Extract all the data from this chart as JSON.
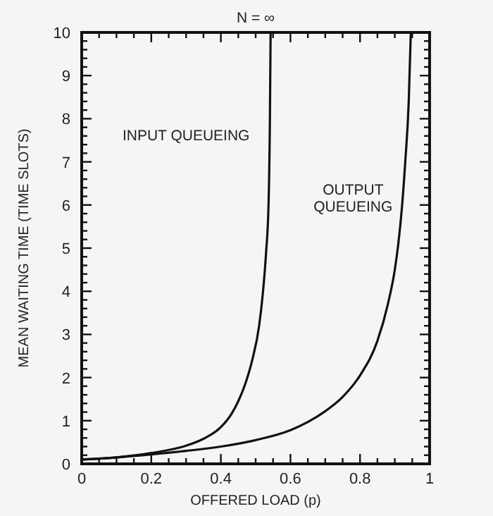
{
  "chart_data": {
    "type": "line",
    "title": "N = ∞",
    "annotations": [
      "INPUT QUEUEING",
      "OUTPUT QUEUEING"
    ],
    "xlabel": "OFFERED LOAD (p)",
    "ylabel": "MEAN WAITING TIME (TIME SLOTS)",
    "grid": false,
    "marker": "none",
    "line_style": "solid",
    "xlim": [
      0,
      1
    ],
    "ylim": [
      0,
      10
    ],
    "xticks": [
      0,
      {
        "value": 0.05,
        "label": null
      },
      {
        "value": 0.1,
        "label": null
      },
      {
        "value": 0.15,
        "label": null
      },
      0.2,
      {
        "value": 0.25,
        "label": null
      },
      {
        "value": 0.3,
        "label": null
      },
      {
        "value": 0.35,
        "label": null
      },
      0.4,
      {
        "value": 0.45,
        "label": null
      },
      {
        "value": 0.5,
        "label": null
      },
      {
        "value": 0.55,
        "label": null
      },
      0.6,
      {
        "value": 0.65,
        "label": null
      },
      {
        "value": 0.7,
        "label": null
      },
      {
        "value": 0.75,
        "label": null
      },
      0.8,
      {
        "value": 0.85,
        "label": null
      },
      {
        "value": 0.9,
        "label": null
      },
      {
        "value": 0.95,
        "label": null
      },
      1
    ],
    "yticks": [
      0,
      {
        "value": 0.2,
        "label": null
      },
      {
        "value": 0.4,
        "label": null
      },
      {
        "value": 0.6,
        "label": null
      },
      {
        "value": 0.8,
        "label": null
      },
      1,
      {
        "value": 1.2,
        "label": null
      },
      {
        "value": 1.4,
        "label": null
      },
      {
        "value": 1.6,
        "label": null
      },
      {
        "value": 1.8,
        "label": null
      },
      2,
      {
        "value": 2.2,
        "label": null
      },
      {
        "value": 2.4,
        "label": null
      },
      {
        "value": 2.6,
        "label": null
      },
      {
        "value": 2.8,
        "label": null
      },
      3,
      {
        "value": 3.2,
        "label": null
      },
      {
        "value": 3.4,
        "label": null
      },
      {
        "value": 3.6,
        "label": null
      },
      {
        "value": 3.8,
        "label": null
      },
      4,
      {
        "value": 4.2,
        "label": null
      },
      {
        "value": 4.4,
        "label": null
      },
      {
        "value": 4.6,
        "label": null
      },
      {
        "value": 4.8,
        "label": null
      },
      5,
      {
        "value": 5.2,
        "label": null
      },
      {
        "value": 5.4,
        "label": null
      },
      {
        "value": 5.6,
        "label": null
      },
      {
        "value": 5.8,
        "label": null
      },
      6,
      {
        "value": 6.2,
        "label": null
      },
      {
        "value": 6.4,
        "label": null
      },
      {
        "value": 6.6,
        "label": null
      },
      {
        "value": 6.8,
        "label": null
      },
      7,
      {
        "value": 7.2,
        "label": null
      },
      {
        "value": 7.4,
        "label": null
      },
      {
        "value": 7.6,
        "label": null
      },
      {
        "value": 7.8,
        "label": null
      },
      8,
      {
        "value": 8.2,
        "label": null
      },
      {
        "value": 8.4,
        "label": null
      },
      {
        "value": 8.6,
        "label": null
      },
      {
        "value": 8.8,
        "label": null
      },
      9,
      {
        "value": 9.2,
        "label": null
      },
      {
        "value": 9.4,
        "label": null
      },
      {
        "value": 9.6,
        "label": null
      },
      {
        "value": 9.8,
        "label": null
      },
      10
    ],
    "series": [
      {
        "color": "#111111",
        "x": [
          0,
          0.1,
          0.2,
          0.3,
          0.35,
          0.4,
          0.43,
          0.45,
          0.47,
          0.49,
          0.51,
          0.52,
          0.53,
          0.537,
          0.541,
          0.543
        ],
        "values": [
          0.1,
          0.15,
          0.25,
          0.42,
          0.58,
          0.85,
          1.15,
          1.45,
          1.85,
          2.4,
          3.2,
          3.9,
          4.9,
          6.0,
          8.0,
          10
        ]
      },
      {
        "color": "#111111",
        "x": [
          0,
          0.1,
          0.2,
          0.3,
          0.4,
          0.5,
          0.6,
          0.65,
          0.7,
          0.75,
          0.8,
          0.85,
          0.88,
          0.9,
          0.91,
          0.92,
          0.93,
          0.94,
          0.946
        ],
        "values": [
          0.1,
          0.15,
          0.22,
          0.3,
          0.4,
          0.55,
          0.78,
          0.97,
          1.22,
          1.55,
          2.05,
          2.85,
          3.7,
          4.5,
          5.1,
          5.9,
          7.0,
          8.4,
          10
        ]
      }
    ]
  }
}
